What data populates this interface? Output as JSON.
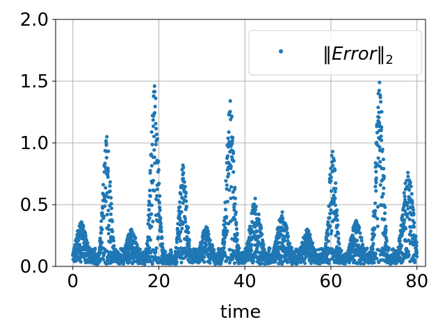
{
  "chart_data": {
    "type": "scatter",
    "title": "",
    "xlabel": "time",
    "ylabel": "",
    "xlim": [
      -4,
      82
    ],
    "ylim": [
      0,
      2
    ],
    "xticks": [
      0,
      20,
      40,
      60,
      80
    ],
    "yticks": [
      0,
      0.5,
      1,
      1.5,
      2
    ],
    "xtick_labels": [
      "0",
      "20",
      "40",
      "60",
      "80"
    ],
    "ytick_labels": [
      "0.0",
      "0.5",
      "1.0",
      "1.5",
      "2.0"
    ],
    "grid": true,
    "legend_position": "top-right",
    "series": [
      {
        "name": "‖Error‖₂",
        "color": "#1f77b4",
        "marker": "circle",
        "baseline_level": 0.1,
        "peaks": [
          {
            "x": 2.0,
            "y": 0.36
          },
          {
            "x": 7.9,
            "y": 1.05
          },
          {
            "x": 13.6,
            "y": 0.3
          },
          {
            "x": 19.0,
            "y": 1.46
          },
          {
            "x": 25.6,
            "y": 0.82
          },
          {
            "x": 31.0,
            "y": 0.32
          },
          {
            "x": 36.6,
            "y": 1.34
          },
          {
            "x": 42.4,
            "y": 0.55
          },
          {
            "x": 48.7,
            "y": 0.44
          },
          {
            "x": 54.5,
            "y": 0.3
          },
          {
            "x": 60.4,
            "y": 0.93
          },
          {
            "x": 65.9,
            "y": 0.37
          },
          {
            "x": 71.3,
            "y": 1.49
          },
          {
            "x": 77.9,
            "y": 0.76
          }
        ]
      }
    ]
  }
}
